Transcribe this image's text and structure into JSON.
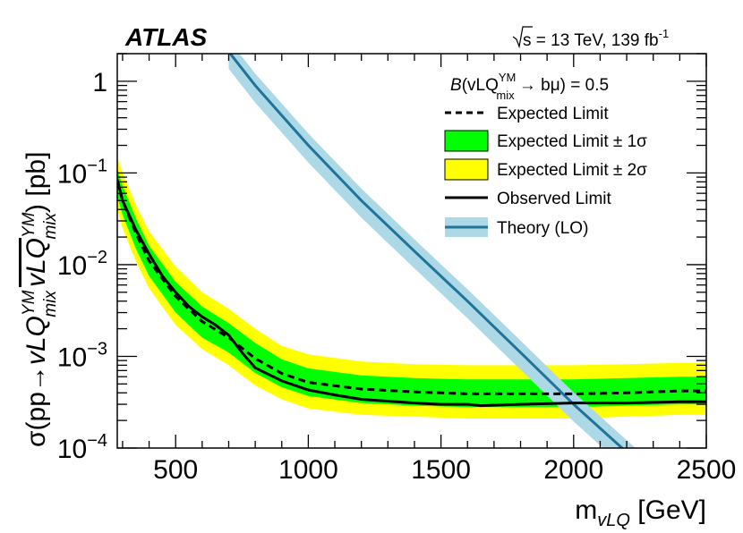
{
  "header": {
    "experiment": "ATLAS",
    "energy_prefix": "s",
    "energy_text": " = 13 TeV, 139 fb",
    "energy_sup": "-1"
  },
  "legend": {
    "title_B": "B",
    "title_main": "(vLQ",
    "title_sup": "YM",
    "title_sub": "mix",
    "title_end": " → bμ) = 0.5",
    "entries": [
      {
        "key": "expected",
        "label": "Expected Limit"
      },
      {
        "key": "band1",
        "label": "Expected Limit ± 1σ"
      },
      {
        "key": "band2",
        "label": "Expected Limit ± 2σ"
      },
      {
        "key": "observed",
        "label": "Observed Limit"
      },
      {
        "key": "theory",
        "label": "Theory (LO)"
      }
    ]
  },
  "colors": {
    "band1": "#00ff00",
    "band2": "#ffff00",
    "theory_line": "#1f7399",
    "theory_band": "#add8e6",
    "line": "#000000"
  },
  "chart_data": {
    "type": "line",
    "xlabel_main": "m",
    "xlabel_sub": "vLQ",
    "xlabel_unit": " [GeV]",
    "ylabel_pre": "σ(pp→",
    "ylabel_vlq": "vLQ",
    "ylabel_sup": "YM",
    "ylabel_sub": "mix",
    "ylabel_post": ") [pb]",
    "xlim": [
      280,
      2500
    ],
    "ylim": [
      0.0001,
      2
    ],
    "yscale": "log",
    "xticks": [
      500,
      1000,
      1500,
      2000,
      2500
    ],
    "xtick_labels": [
      "500",
      "1000",
      "1500",
      "2000",
      "2500"
    ],
    "yticks": [
      {
        "value": 1,
        "base": "1",
        "exp": ""
      },
      {
        "value": 0.1,
        "base": "10",
        "exp": "−1"
      },
      {
        "value": 0.01,
        "base": "10",
        "exp": "−2"
      },
      {
        "value": 0.001,
        "base": "10",
        "exp": "−3"
      },
      {
        "value": 0.0001,
        "base": "10",
        "exp": "−4"
      }
    ],
    "series": [
      {
        "name": "Expected Limit",
        "x": [
          280,
          300,
          350,
          400,
          500,
          600,
          700,
          800,
          900,
          1000,
          1200,
          1400,
          1600,
          1800,
          2000,
          2200,
          2400,
          2500
        ],
        "y": [
          0.08,
          0.05,
          0.022,
          0.011,
          0.0045,
          0.0024,
          0.0016,
          0.00095,
          0.00065,
          0.00052,
          0.00044,
          0.00041,
          0.00039,
          0.00039,
          0.00039,
          0.0004,
          0.00042,
          0.00042
        ]
      },
      {
        "name": "Expected Limit ± 1σ",
        "x": [
          280,
          300,
          350,
          400,
          500,
          600,
          700,
          800,
          900,
          1000,
          1200,
          1400,
          1600,
          1800,
          2000,
          2200,
          2400,
          2500
        ],
        "low": [
          0.055,
          0.035,
          0.015,
          0.0075,
          0.003,
          0.0016,
          0.0011,
          0.00066,
          0.00046,
          0.00037,
          0.00031,
          0.00029,
          0.00028,
          0.00028,
          0.00028,
          0.00029,
          0.0003,
          0.0003
        ],
        "high": [
          0.11,
          0.072,
          0.032,
          0.016,
          0.0065,
          0.0035,
          0.0023,
          0.0014,
          0.00093,
          0.00074,
          0.00062,
          0.00058,
          0.00056,
          0.00056,
          0.00056,
          0.00058,
          0.0006,
          0.0006
        ]
      },
      {
        "name": "Expected Limit ± 2σ",
        "x": [
          280,
          300,
          350,
          400,
          500,
          600,
          700,
          800,
          900,
          1000,
          1200,
          1400,
          1600,
          1800,
          2000,
          2200,
          2400,
          2500
        ],
        "low": [
          0.04,
          0.025,
          0.011,
          0.0055,
          0.0022,
          0.0012,
          0.0008,
          0.00048,
          0.00034,
          0.00027,
          0.00023,
          0.00022,
          0.00021,
          0.00021,
          0.00021,
          0.00022,
          0.00023,
          0.00023
        ],
        "high": [
          0.15,
          0.1,
          0.045,
          0.023,
          0.0095,
          0.005,
          0.0033,
          0.002,
          0.0013,
          0.00105,
          0.00088,
          0.00082,
          0.0008,
          0.0008,
          0.0008,
          0.00082,
          0.00085,
          0.00085
        ]
      },
      {
        "name": "Observed Limit",
        "x": [
          280,
          300,
          350,
          400,
          450,
          500,
          550,
          600,
          650,
          700,
          750,
          800,
          900,
          1000,
          1100,
          1200,
          1400,
          1500,
          1600,
          1650,
          1800,
          2000,
          2200,
          2400,
          2500
        ],
        "y": [
          0.085,
          0.05,
          0.024,
          0.013,
          0.0075,
          0.005,
          0.0035,
          0.0027,
          0.0022,
          0.0017,
          0.0011,
          0.00075,
          0.00054,
          0.00043,
          0.00038,
          0.00034,
          0.00031,
          0.0003,
          0.0003,
          0.00029,
          0.0003,
          0.00031,
          0.00031,
          0.00032,
          0.00032
        ]
      },
      {
        "name": "Theory (LO)",
        "x": [
          700,
          800,
          1000,
          1200,
          1400,
          1600,
          1800,
          2000,
          2200,
          2300
        ],
        "y": [
          2.1,
          0.9,
          0.2,
          0.05,
          0.014,
          0.004,
          0.0011,
          0.0003,
          9e-05,
          5e-05
        ],
        "rel_unc": 0.35
      }
    ]
  }
}
